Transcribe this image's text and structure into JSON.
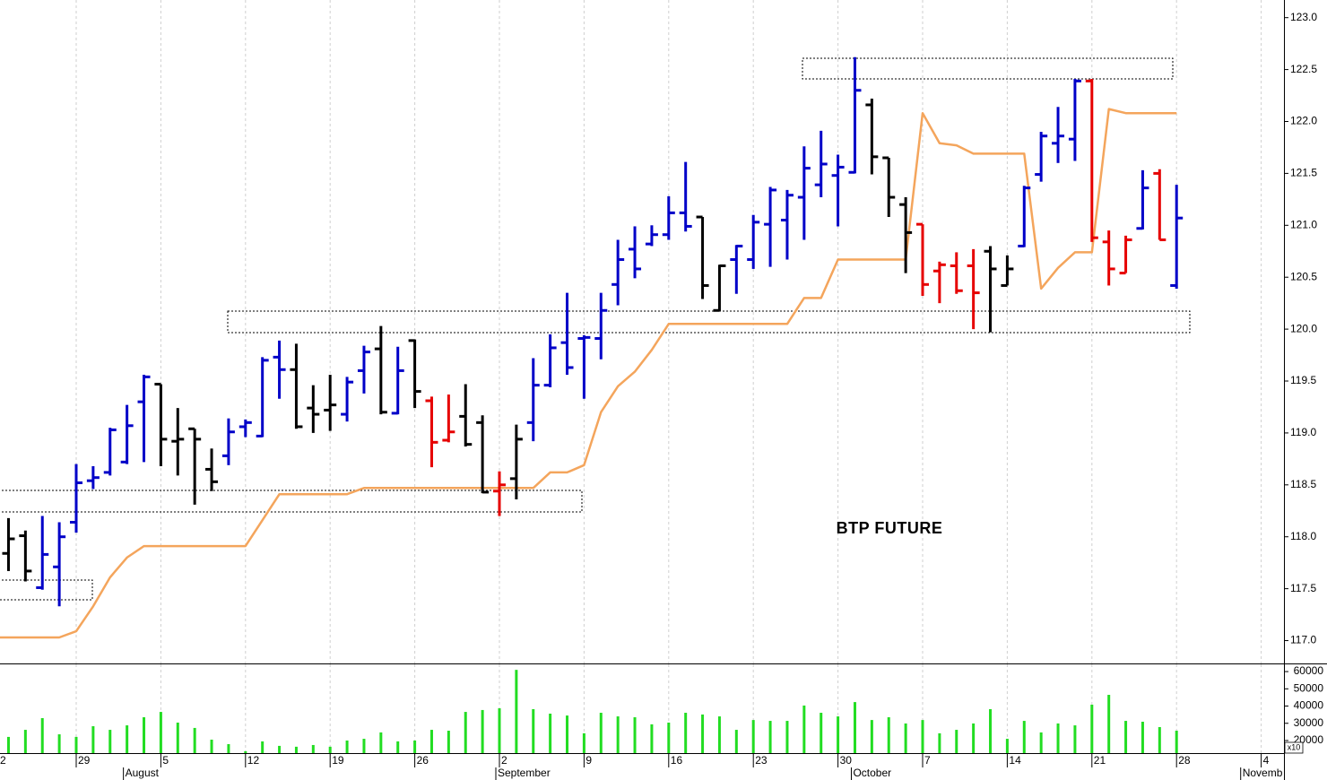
{
  "chart_data": {
    "type": "ohlc",
    "annotation": "BTP FUTURE",
    "categories": [
      "2",
      null,
      null,
      null,
      null,
      "29",
      null,
      null,
      null,
      null,
      "5",
      null,
      null,
      null,
      null,
      "12",
      null,
      null,
      null,
      null,
      "19",
      null,
      null,
      null,
      null,
      "26",
      null,
      null,
      null,
      null,
      "2",
      null,
      null,
      null,
      null,
      "9",
      null,
      null,
      null,
      null,
      "16",
      null,
      null,
      null,
      null,
      "23",
      null,
      null,
      null,
      null,
      "30",
      null,
      null,
      null,
      null,
      "7",
      null,
      null,
      null,
      null,
      "14",
      null,
      null,
      null,
      null,
      "21",
      null,
      null,
      null,
      null,
      "28",
      null,
      null,
      null,
      null,
      "4",
      null
    ],
    "month_categories": [
      null,
      null,
      null,
      null,
      null,
      null,
      null,
      null,
      "August",
      null,
      null,
      null,
      null,
      null,
      null,
      null,
      null,
      null,
      null,
      null,
      null,
      null,
      null,
      null,
      null,
      null,
      null,
      null,
      null,
      null,
      "September",
      null,
      null,
      null,
      null,
      null,
      null,
      null,
      null,
      null,
      null,
      null,
      null,
      null,
      null,
      null,
      null,
      null,
      null,
      null,
      null,
      "October",
      null,
      null,
      null,
      null,
      null,
      null,
      null,
      null,
      null,
      null,
      null,
      null,
      null,
      null,
      null,
      null,
      null,
      null,
      null,
      null,
      null,
      null,
      "Novemb",
      null,
      null
    ],
    "ylim": [
      116.78,
      123.17
    ],
    "yticks": [
      {
        "value": 117,
        "label": "117.0"
      },
      117.5,
      {
        "value": 118,
        "label": "118.0"
      },
      118.5,
      {
        "value": 119,
        "label": "119.0"
      },
      119.5,
      {
        "value": 120,
        "label": "120.0"
      },
      120.5,
      {
        "value": 121,
        "label": "121.0"
      },
      121.5,
      {
        "value": 122,
        "label": "122.0"
      },
      122.5,
      {
        "value": 123,
        "label": "123.0"
      }
    ],
    "grid": true,
    "open": [
      null,
      117.84,
      118.01,
      117.51,
      117.71,
      118.14,
      118.54,
      118.62,
      118.72,
      119.3,
      119.47,
      118.92,
      119.04,
      118.65,
      118.78,
      119.06,
      118.97,
      119.73,
      119.61,
      119.24,
      119.22,
      119.18,
      119.6,
      119.81,
      119.19,
      119.89,
      119.31,
      118.93,
      119.16,
      119.1,
      118.44,
      118.56,
      119.1,
      119.46,
      119.87,
      119.91,
      119.91,
      120.43,
      120.77,
      120.82,
      120.91,
      121.12,
      121.08,
      120.18,
      120.67,
      120.67,
      121.01,
      121.05,
      121.27,
      121.39,
      121.48,
      121.51,
      122.16,
      121.65,
      121.2,
      121.01,
      120.56,
      120.61,
      120.61,
      120.75,
      120.42,
      120.8,
      121.49,
      121.79,
      121.83,
      122.39,
      120.84,
      120.54,
      120.97,
      121.5,
      120.42,
      null,
      null,
      null,
      null,
      null,
      null
    ],
    "high": [
      null,
      118.18,
      118.06,
      118.2,
      118.14,
      118.7,
      118.68,
      119.05,
      119.27,
      119.56,
      119.47,
      119.24,
      119.04,
      118.85,
      119.14,
      119.13,
      119.73,
      119.89,
      119.86,
      119.46,
      119.56,
      119.54,
      119.84,
      120.03,
      119.83,
      119.9,
      119.35,
      119.37,
      119.47,
      119.17,
      118.63,
      119.08,
      119.72,
      119.95,
      120.35,
      119.94,
      120.35,
      120.86,
      120.99,
      121.0,
      121.28,
      121.61,
      121.08,
      120.62,
      120.81,
      121.1,
      121.37,
      121.34,
      121.76,
      121.91,
      121.68,
      122.62,
      122.22,
      121.65,
      121.27,
      121.01,
      120.65,
      120.74,
      120.77,
      120.8,
      120.71,
      121.38,
      121.9,
      122.14,
      122.41,
      122.41,
      120.95,
      120.9,
      121.53,
      121.54,
      121.39,
      null,
      null,
      null,
      null,
      null,
      null
    ],
    "low": [
      null,
      117.67,
      117.57,
      117.49,
      117.33,
      118.04,
      118.46,
      118.59,
      118.7,
      118.72,
      118.68,
      118.59,
      118.31,
      118.44,
      118.69,
      118.96,
      118.96,
      119.33,
      119.04,
      119.0,
      119.02,
      119.11,
      119.38,
      119.18,
      119.18,
      119.24,
      118.67,
      118.91,
      118.87,
      118.42,
      118.2,
      118.36,
      118.92,
      119.44,
      119.56,
      119.33,
      119.71,
      120.23,
      120.49,
      120.8,
      120.86,
      120.94,
      120.29,
      120.17,
      120.34,
      120.58,
      120.6,
      120.67,
      120.86,
      121.27,
      120.99,
      121.5,
      121.49,
      121.08,
      120.54,
      120.32,
      120.25,
      120.34,
      120.0,
      119.97,
      120.42,
      120.79,
      121.42,
      121.6,
      121.62,
      120.84,
      120.42,
      120.54,
      120.96,
      120.86,
      120.39,
      null,
      null,
      null,
      null,
      null,
      null
    ],
    "close": [
      null,
      117.98,
      117.67,
      117.83,
      118.0,
      118.52,
      118.57,
      119.03,
      119.07,
      119.54,
      118.94,
      118.94,
      118.94,
      118.53,
      119.01,
      119.1,
      119.7,
      119.61,
      119.06,
      119.18,
      119.27,
      119.49,
      119.78,
      119.2,
      119.6,
      119.4,
      118.91,
      119.01,
      118.89,
      118.43,
      118.5,
      118.94,
      119.46,
      119.82,
      119.63,
      119.92,
      120.18,
      120.67,
      120.58,
      120.91,
      121.12,
      120.99,
      120.42,
      120.61,
      120.8,
      121.03,
      121.34,
      121.29,
      121.55,
      121.59,
      121.56,
      122.3,
      121.66,
      121.27,
      120.93,
      120.43,
      120.62,
      120.37,
      120.35,
      120.58,
      120.58,
      121.36,
      121.86,
      121.86,
      122.39,
      120.88,
      120.58,
      120.86,
      121.36,
      120.86,
      121.07,
      null,
      null,
      null,
      null,
      null,
      null
    ],
    "colors": [
      null,
      "#000000",
      "#000000",
      "#0000c8",
      "#0000c8",
      "#0000c8",
      "#0000c8",
      "#0000c8",
      "#0000c8",
      "#0000c8",
      "#000000",
      "#000000",
      "#000000",
      "#000000",
      "#0000c8",
      "#0000c8",
      "#0000c8",
      "#0000c8",
      "#000000",
      "#000000",
      "#000000",
      "#0000c8",
      "#0000c8",
      "#000000",
      "#0000c8",
      "#000000",
      "#e60000",
      "#e60000",
      "#000000",
      "#000000",
      "#e60000",
      "#000000",
      "#0000c8",
      "#0000c8",
      "#0000c8",
      "#0000c8",
      "#0000c8",
      "#0000c8",
      "#0000c8",
      "#0000c8",
      "#0000c8",
      "#0000c8",
      "#000000",
      "#000000",
      "#0000c8",
      "#0000c8",
      "#0000c8",
      "#0000c8",
      "#0000c8",
      "#0000c8",
      "#0000c8",
      "#0000c8",
      "#000000",
      "#000000",
      "#000000",
      "#e60000",
      "#e60000",
      "#e60000",
      "#e60000",
      "#000000",
      "#000000",
      "#0000c8",
      "#0000c8",
      "#0000c8",
      "#0000c8",
      "#e60000",
      "#e60000",
      "#e60000",
      "#0000c8",
      "#e60000",
      "#0000c8",
      null,
      null,
      null,
      null,
      null,
      null
    ],
    "line": {
      "color": "#f4a55c",
      "values": [
        117.03,
        117.03,
        117.03,
        117.03,
        117.03,
        117.09,
        117.33,
        117.61,
        117.8,
        117.91,
        117.91,
        117.91,
        117.91,
        117.91,
        117.91,
        117.91,
        118.16,
        118.41,
        118.41,
        118.41,
        118.41,
        118.41,
        118.47,
        118.47,
        118.47,
        118.47,
        118.47,
        118.47,
        118.47,
        118.47,
        118.47,
        118.47,
        118.47,
        118.62,
        118.62,
        118.69,
        119.2,
        119.45,
        119.59,
        119.8,
        120.05,
        120.05,
        120.05,
        120.05,
        120.05,
        120.05,
        120.05,
        120.05,
        120.3,
        120.3,
        120.67,
        120.67,
        120.67,
        120.67,
        120.67,
        122.08,
        121.79,
        121.77,
        121.69,
        121.69,
        121.69,
        121.69,
        120.39,
        120.59,
        120.74,
        120.74,
        122.12,
        122.08,
        122.08,
        122.08,
        122.08,
        null,
        null,
        null,
        null,
        null,
        null
      ]
    },
    "volume": {
      "color": "#22dd22",
      "ylim": [
        12700,
        64200
      ],
      "yticks": [
        20000,
        30000,
        40000,
        50000,
        60000
      ],
      "unit_label": "x10",
      "values": [
        null,
        22100,
        26200,
        33000,
        23600,
        22100,
        28300,
        26200,
        28800,
        33500,
        36600,
        30400,
        27300,
        20500,
        17900,
        13800,
        19500,
        16900,
        16400,
        17400,
        16400,
        20000,
        21000,
        24700,
        19500,
        20000,
        26200,
        25700,
        36600,
        37700,
        38700,
        61000,
        38200,
        35600,
        34500,
        24200,
        36100,
        34000,
        33500,
        29400,
        30400,
        36100,
        35100,
        34000,
        26200,
        31900,
        31400,
        31400,
        40300,
        36100,
        34000,
        42300,
        31900,
        33500,
        29900,
        31900,
        24200,
        26200,
        29900,
        38200,
        21000,
        31400,
        24700,
        29900,
        28800,
        40800,
        46500,
        31400,
        30900,
        27800,
        25700,
        null,
        null,
        null,
        null,
        null,
        null
      ]
    }
  }
}
